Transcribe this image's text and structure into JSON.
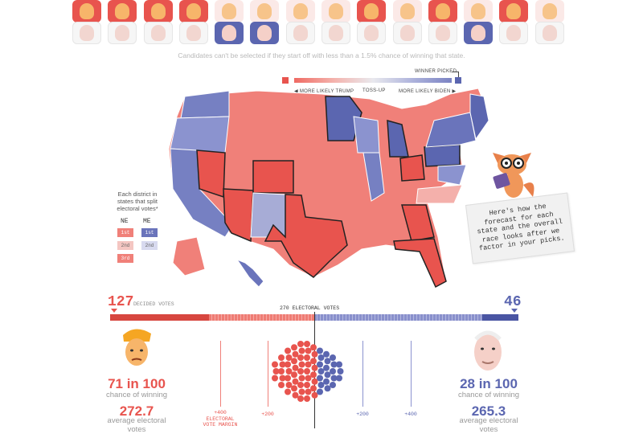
{
  "picker": {
    "top_row": [
      "trump",
      "trump",
      "trump",
      "trump",
      "trump-light",
      "trump-light",
      "trump-light",
      "trump-light",
      "trump",
      "trump-light",
      "trump",
      "trump-light",
      "trump",
      "trump-light"
    ],
    "bottom_row": [
      "biden-light",
      "biden-light",
      "biden-light",
      "biden-light",
      "biden",
      "biden",
      "biden-light",
      "biden-light",
      "biden-light",
      "biden-light",
      "biden-light",
      "biden",
      "biden-light",
      "biden-light"
    ],
    "note": "Candidates can't be selected if they start off with less than a 1.5% chance of winning that state."
  },
  "legend": {
    "winner_picked": "WINNER PICKED",
    "more_likely_trump": "◀ MORE LIKELY TRUMP",
    "toss_up": "TOSS-UP",
    "more_likely_biden": "MORE LIKELY BIDEN ▶"
  },
  "districts": {
    "title": "Each district in states that split electoral votes*",
    "ne": "NE",
    "me": "ME",
    "ne_items": [
      "1st",
      "2nd",
      "3rd"
    ],
    "me_items": [
      "1st",
      "2nd"
    ]
  },
  "callout": {
    "text": "Here's how the forecast for each state and the overall race looks after we factor in your picks."
  },
  "bar": {
    "trump_decided": "127",
    "decided_label": "DECIDED VOTES",
    "center_label": "270 ELECTORAL VOTES",
    "biden_decided": "46"
  },
  "trump": {
    "odds": "71 in 100",
    "odds_label": "chance of winning",
    "avg_ev": "272.7",
    "avg_ev_label": "average electoral votes"
  },
  "biden": {
    "odds": "28 in 100",
    "odds_label": "chance of winning",
    "avg_ev": "265.3",
    "avg_ev_label": "average electoral votes"
  },
  "axis": {
    "left400": "+400",
    "left200": "+200",
    "right200": "+200",
    "right400": "+400",
    "margin_label": "ELECTORAL VOTE MARGIN"
  },
  "colors": {
    "trump": "#e8544e",
    "trump_light": "#f0837c",
    "biden": "#5b66b0",
    "biden_light": "#8790cc"
  }
}
